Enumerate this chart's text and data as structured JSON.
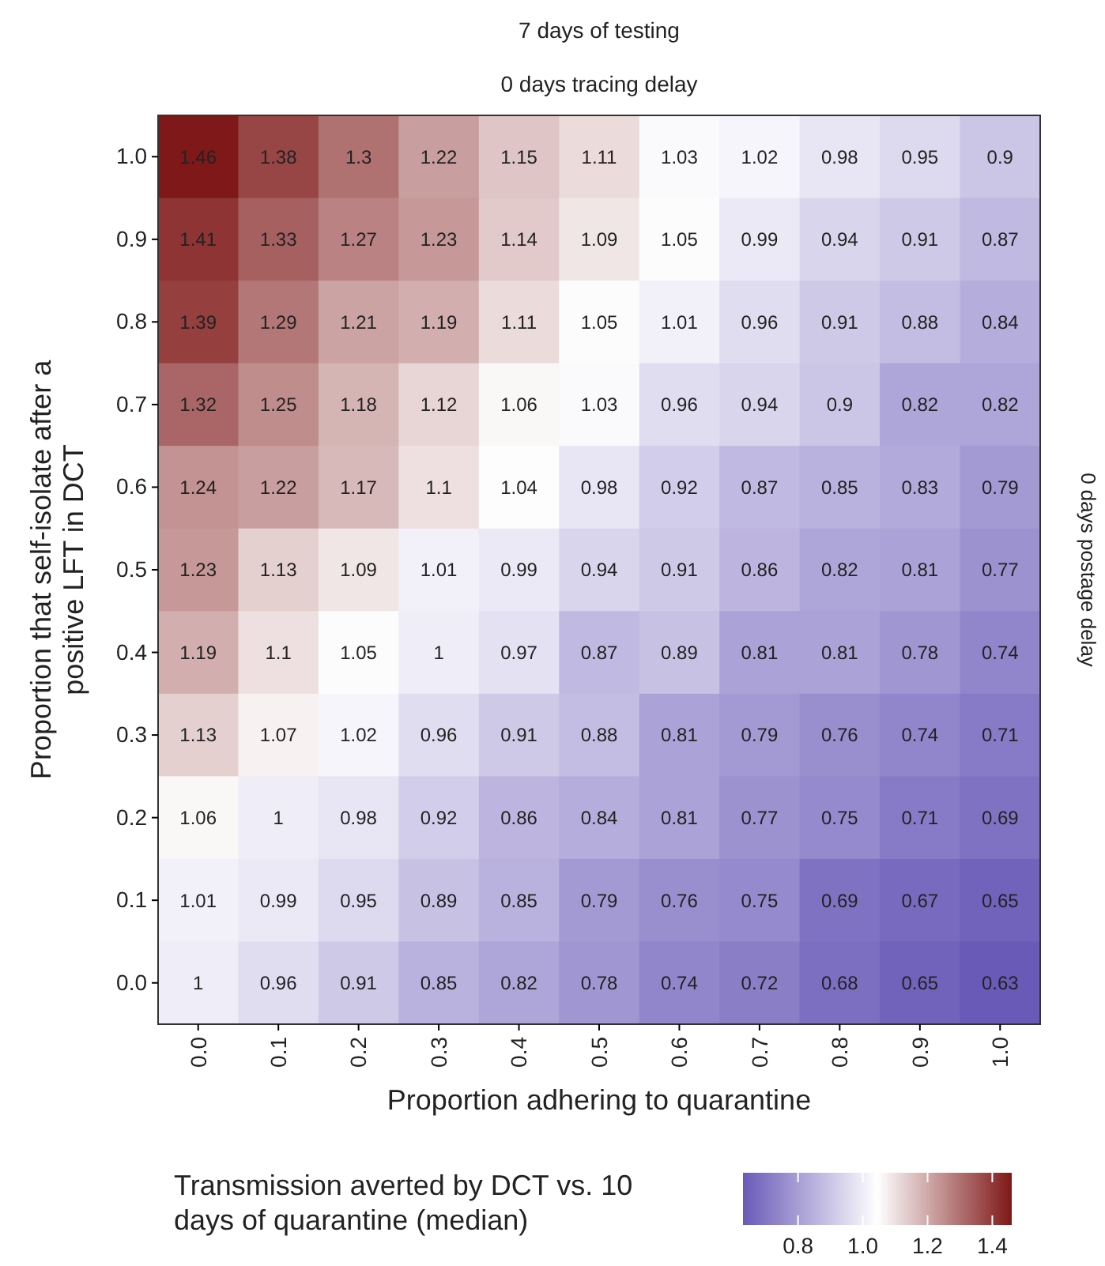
{
  "chart_data": {
    "type": "heatmap",
    "title": "7 days of testing",
    "subtitle": "0 days tracing delay",
    "annotations": [
      "0 days postage delay"
    ],
    "xlabel": "Proportion adhering to quarantine",
    "ylabel": "Proportion that self-isolate after a positive LFT in DCT",
    "clabel": "Transmission averted by DCT vs. 10 days of quarantine (median)",
    "categories": [
      "0.0",
      "0.1",
      "0.2",
      "0.3",
      "0.4",
      "0.5",
      "0.6",
      "0.7",
      "0.8",
      "0.9",
      "1.0"
    ],
    "y_categories": [
      "1.0",
      "0.9",
      "0.8",
      "0.7",
      "0.6",
      "0.5",
      "0.4",
      "0.3",
      "0.2",
      "0.1",
      "0.0"
    ],
    "cells": [
      [
        1.46,
        1.38,
        1.3,
        1.22,
        1.15,
        1.11,
        1.03,
        1.02,
        0.98,
        0.95,
        0.9
      ],
      [
        1.41,
        1.33,
        1.27,
        1.23,
        1.14,
        1.09,
        1.05,
        0.99,
        0.94,
        0.91,
        0.87
      ],
      [
        1.39,
        1.29,
        1.21,
        1.19,
        1.11,
        1.05,
        1.01,
        0.96,
        0.91,
        0.88,
        0.84
      ],
      [
        1.32,
        1.25,
        1.18,
        1.12,
        1.06,
        1.03,
        0.96,
        0.94,
        0.9,
        0.82,
        0.82
      ],
      [
        1.24,
        1.22,
        1.17,
        1.1,
        1.04,
        0.98,
        0.92,
        0.87,
        0.85,
        0.83,
        0.79
      ],
      [
        1.23,
        1.13,
        1.09,
        1.01,
        0.99,
        0.94,
        0.91,
        0.86,
        0.82,
        0.81,
        0.77
      ],
      [
        1.19,
        1.1,
        1.05,
        1,
        0.97,
        0.87,
        0.89,
        0.81,
        0.81,
        0.78,
        0.74
      ],
      [
        1.13,
        1.07,
        1.02,
        0.96,
        0.91,
        0.88,
        0.81,
        0.79,
        0.76,
        0.74,
        0.71
      ],
      [
        1.06,
        1,
        0.98,
        0.92,
        0.86,
        0.84,
        0.81,
        0.77,
        0.75,
        0.71,
        0.69
      ],
      [
        1.01,
        0.99,
        0.95,
        0.89,
        0.85,
        0.79,
        0.76,
        0.75,
        0.69,
        0.67,
        0.65
      ],
      [
        1,
        0.96,
        0.91,
        0.85,
        0.82,
        0.78,
        0.74,
        0.72,
        0.68,
        0.65,
        0.63
      ]
    ],
    "data_labels": true,
    "clim": [
      0.63,
      1.46
    ],
    "cticks": [
      {
        "value": 0.8,
        "label": "0.8"
      },
      {
        "value": 1.0,
        "label": "1.0"
      },
      {
        "value": 1.2,
        "label": "1.2"
      },
      {
        "value": 1.4,
        "label": "1.4"
      }
    ]
  }
}
